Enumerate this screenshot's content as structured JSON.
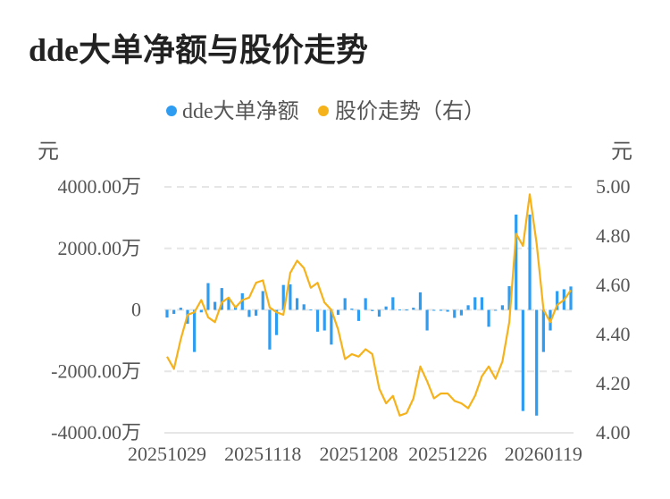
{
  "chart_data": {
    "type": "bar+line",
    "title": "dde大单净额与股价走势",
    "legend": [
      {
        "name": "dde大单净额",
        "color": "#2e9cf0"
      },
      {
        "name": "股价走势（右）",
        "color": "#f5b21b"
      }
    ],
    "legend_placement": "top-center",
    "left_axis": {
      "unit": "元",
      "ylim": [
        -4000,
        4000
      ],
      "ticks": [
        "4000.00万",
        "2000.00万",
        "0",
        "-2000.00万",
        "-4000.00万"
      ],
      "tick_values": [
        4000,
        2000,
        0,
        -2000,
        -4000
      ]
    },
    "right_axis": {
      "unit": "元",
      "ylim": [
        4.0,
        5.0
      ],
      "ticks": [
        "5.00",
        "4.80",
        "4.60",
        "4.40",
        "4.20",
        "4.00"
      ],
      "tick_values": [
        5.0,
        4.8,
        4.6,
        4.4,
        4.2,
        4.0
      ]
    },
    "x_ticks": [
      {
        "index": 0,
        "label": "20251029"
      },
      {
        "index": 14,
        "label": "20251118"
      },
      {
        "index": 28,
        "label": "20251208"
      },
      {
        "index": 41,
        "label": "20251226"
      },
      {
        "index": 55,
        "label": "20260119"
      }
    ],
    "grid": true,
    "series": [
      {
        "name": "dde大单净额",
        "type": "bar",
        "unit": "万元",
        "values": [
          -250,
          -130,
          70,
          -450,
          -1370,
          -80,
          870,
          260,
          710,
          380,
          90,
          540,
          -230,
          -190,
          610,
          -1290,
          -820,
          810,
          830,
          380,
          180,
          10,
          -710,
          -670,
          -1130,
          -160,
          380,
          40,
          -360,
          380,
          -40,
          -220,
          110,
          410,
          10,
          10,
          70,
          570,
          -670,
          -10,
          -30,
          -60,
          -260,
          -180,
          150,
          410,
          410,
          -550,
          -10,
          150,
          770,
          3100,
          -3290,
          3100,
          -3440,
          -1370,
          -670,
          610,
          670,
          760
        ]
      },
      {
        "name": "股价走势（右）",
        "type": "line",
        "unit": "元",
        "values": [
          4.31,
          4.26,
          4.38,
          4.48,
          4.49,
          4.54,
          4.47,
          4.45,
          4.53,
          4.55,
          4.51,
          4.54,
          4.55,
          4.61,
          4.62,
          4.51,
          4.49,
          4.48,
          4.65,
          4.7,
          4.67,
          4.59,
          4.61,
          4.53,
          4.5,
          4.42,
          4.3,
          4.32,
          4.31,
          4.34,
          4.32,
          4.18,
          4.12,
          4.15,
          4.07,
          4.08,
          4.14,
          4.27,
          4.21,
          4.14,
          4.16,
          4.16,
          4.13,
          4.12,
          4.1,
          4.15,
          4.23,
          4.27,
          4.22,
          4.29,
          4.45,
          4.81,
          4.76,
          4.97,
          4.77,
          4.5,
          4.45,
          4.52,
          4.54,
          4.58
        ]
      }
    ]
  }
}
